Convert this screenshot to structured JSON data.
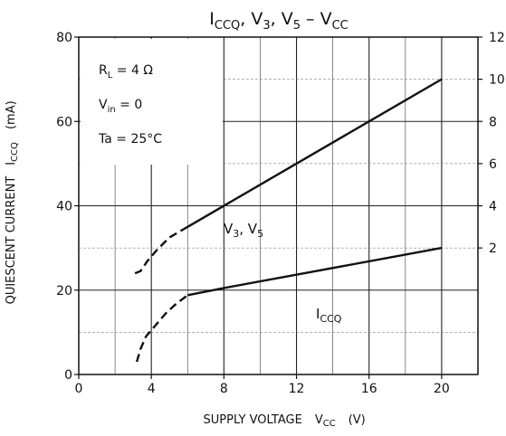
{
  "chart_data": {
    "type": "line",
    "title": {
      "main": "I",
      "main_sub": "CCQ",
      "mid": ", V",
      "mid_sub1": "3",
      "mid2": ", V",
      "mid_sub2": "5",
      "dash": " – V",
      "end_sub": "CC"
    },
    "xlabel": {
      "main": "SUPPLY VOLTAGE",
      "sym": "V",
      "sym_sub": "CC",
      "unit": "(V)"
    },
    "ylabel_left": {
      "main": "QUIESCENT CURRENT",
      "sym": "I",
      "sym_sub": "CCQ",
      "unit": "(mA)"
    },
    "x_ticks": [
      "0",
      "4",
      "8",
      "12",
      "16",
      "20"
    ],
    "y_left_ticks": [
      "0",
      "20",
      "40",
      "60",
      "80"
    ],
    "y_right_ticks": [
      "2",
      "4",
      "6",
      "8",
      "10",
      "12"
    ],
    "xlim": [
      0,
      22
    ],
    "ylim_left": [
      0,
      80
    ],
    "ylim_right": [
      -4,
      12
    ],
    "grid": true,
    "conditions": {
      "rl": {
        "pre": "R",
        "sub": "L",
        "post": " = 4 Ω"
      },
      "vin": {
        "pre": "V",
        "sub": "in",
        "post": " = 0"
      },
      "ta": "Ta = 25°C"
    },
    "series": [
      {
        "name": "ICCQ",
        "label": {
          "pre": "I",
          "sub": "CCQ"
        },
        "axis": "left",
        "solid": [
          [
            6,
            18.8
          ],
          [
            8,
            20.5
          ],
          [
            20,
            30
          ]
        ],
        "dashed": [
          [
            3.2,
            3
          ],
          [
            3.4,
            6
          ],
          [
            3.7,
            9
          ],
          [
            4.2,
            11.5
          ],
          [
            4.8,
            14.5
          ],
          [
            5.3,
            16.5
          ],
          [
            6,
            18.8
          ]
        ]
      },
      {
        "name": "V3, V5",
        "label": {
          "pre": "V",
          "sub1": "3",
          "mid": ", V",
          "sub2": "5"
        },
        "axis": "right",
        "solid": [
          [
            6,
            3
          ],
          [
            20,
            10
          ]
        ],
        "dashed": [
          [
            3.1,
            0.8
          ],
          [
            3.4,
            0.9
          ],
          [
            3.8,
            1.4
          ],
          [
            4.3,
            1.9
          ],
          [
            5,
            2.5
          ],
          [
            6,
            3
          ]
        ]
      }
    ]
  }
}
